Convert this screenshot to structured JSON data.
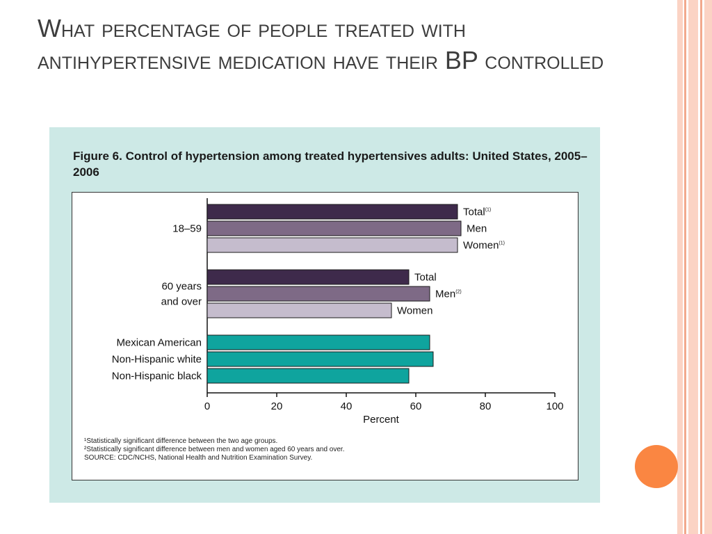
{
  "slide": {
    "title": "What percentage of people treated with antihypertensive medication have their BP controlled"
  },
  "colors": {
    "background": "#ffffff",
    "panel": "#cde9e6",
    "accent_orange": "#fa8642",
    "stripe_light": "#fbd3c4",
    "stripe_dark": "#f2a98d",
    "total": "#3e2a4b",
    "men": "#7e6a86",
    "women": "#c5bccd",
    "race": "#0fa49e"
  },
  "chart_data": {
    "type": "bar",
    "orientation": "horizontal",
    "title": "Figure 6.  Control of hypertension among treated hypertensives adults: United States, 2005–2006",
    "xlabel": "Percent",
    "ylabel": "",
    "xlim": [
      0,
      100
    ],
    "xticks": [
      "0",
      "20",
      "40",
      "60",
      "80",
      "100"
    ],
    "grid": false,
    "legend": "none",
    "groups": [
      {
        "label": "18–59",
        "bars": [
          {
            "label": "Total",
            "superscript": "(1)",
            "value": 72,
            "color": "#3e2a4b"
          },
          {
            "label": "Men",
            "superscript": "",
            "value": 73,
            "color": "#7e6a86"
          },
          {
            "label": "Women",
            "superscript": "(1)",
            "value": 72,
            "color": "#c5bccd"
          }
        ]
      },
      {
        "label": "60 years and over",
        "label_lines": [
          "60 years",
          "and over"
        ],
        "bars": [
          {
            "label": "Total",
            "superscript": "",
            "value": 58,
            "color": "#3e2a4b"
          },
          {
            "label": "Men",
            "superscript": "(2)",
            "value": 64,
            "color": "#7e6a86"
          },
          {
            "label": "Women",
            "superscript": "",
            "value": 53,
            "color": "#c5bccd"
          }
        ]
      },
      {
        "label": "",
        "bars": [
          {
            "label": "Mexican American",
            "label_position": "left",
            "value": 64,
            "color": "#0fa49e"
          },
          {
            "label": "Non-Hispanic white",
            "label_position": "left",
            "value": 65,
            "color": "#0fa49e"
          },
          {
            "label": "Non-Hispanic black",
            "label_position": "left",
            "value": 58,
            "color": "#0fa49e"
          }
        ]
      }
    ],
    "footnotes": [
      "¹Statistically significant difference between the two age groups.",
      "²Statistically significant difference between men and women aged 60 years and over.",
      "SOURCE: CDC/NCHS, National Health and Nutrition Examination Survey."
    ]
  }
}
